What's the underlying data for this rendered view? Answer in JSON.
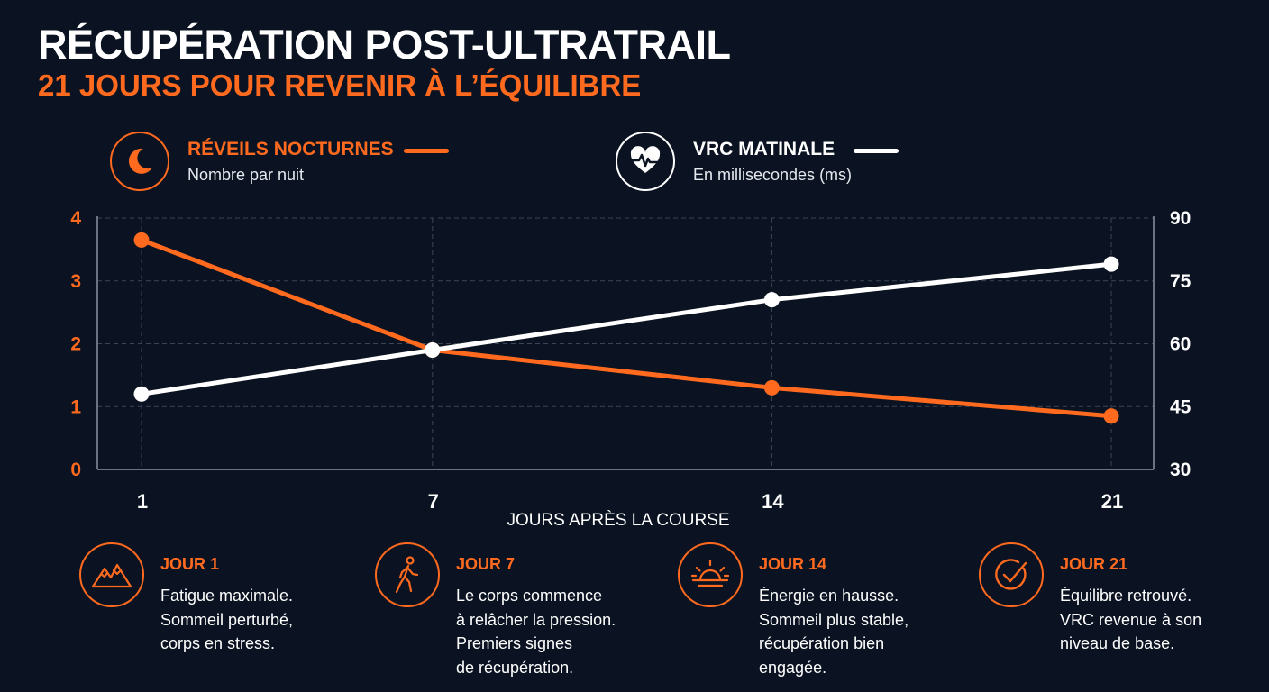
{
  "title": "RÉCUPÉRATION POST-ULTRATRAIL",
  "subtitle": "21 JOURS POUR REVENIR À L’ÉQUILIBRE",
  "colors": {
    "background": "#0b1322",
    "accent": "#ff6a1f",
    "secondary": "#ffffff",
    "grid": "#3a4556"
  },
  "legend": [
    {
      "icon": "moon-icon",
      "title": "RÉVEILS NOCTURNES",
      "subtitle": "Nombre par nuit",
      "color": "#ff6a1f"
    },
    {
      "icon": "heart-pulse-icon",
      "title": "VRC MATINALE",
      "subtitle": "En millisecondes (ms)",
      "color": "#ffffff"
    }
  ],
  "chart_data": {
    "type": "line",
    "x": [
      1,
      7,
      14,
      21
    ],
    "xlabel": "JOURS APRÈS LA COURSE",
    "x_ticks": [
      "1",
      "7",
      "14",
      "21"
    ],
    "series": [
      {
        "name": "RÉVEILS NOCTURNES",
        "axis": "left",
        "color": "#ff6a1f",
        "values": [
          3.65,
          1.9,
          1.3,
          0.85
        ]
      },
      {
        "name": "VRC MATINALE",
        "axis": "right",
        "color": "#ffffff",
        "values": [
          48,
          58.5,
          70.5,
          79
        ]
      }
    ],
    "y_left": {
      "ticks": [
        "0",
        "1",
        "2",
        "3",
        "4"
      ],
      "range": [
        0,
        4
      ]
    },
    "y_right": {
      "ticks": [
        "30",
        "45",
        "60",
        "75",
        "90"
      ],
      "range": [
        30,
        90
      ]
    },
    "grid": true,
    "legend_placement": "top"
  },
  "milestones": [
    {
      "icon": "mountains-icon",
      "day": "JOUR 1",
      "text": "Fatigue maximale.\nSommeil perturbé,\ncorps en stress."
    },
    {
      "icon": "walking-person-icon",
      "day": "JOUR 7",
      "text": "Le corps commence\nà relâcher la pression.\nPremiers signes\nde récupération."
    },
    {
      "icon": "sunrise-icon",
      "day": "JOUR 14",
      "text": "Énergie en hausse.\nSommeil plus stable,\nrécupération bien\nengagée."
    },
    {
      "icon": "check-circle-icon",
      "day": "JOUR 21",
      "text": "Équilibre retrouvé.\nVRC revenue à son\nniveau de base."
    }
  ]
}
